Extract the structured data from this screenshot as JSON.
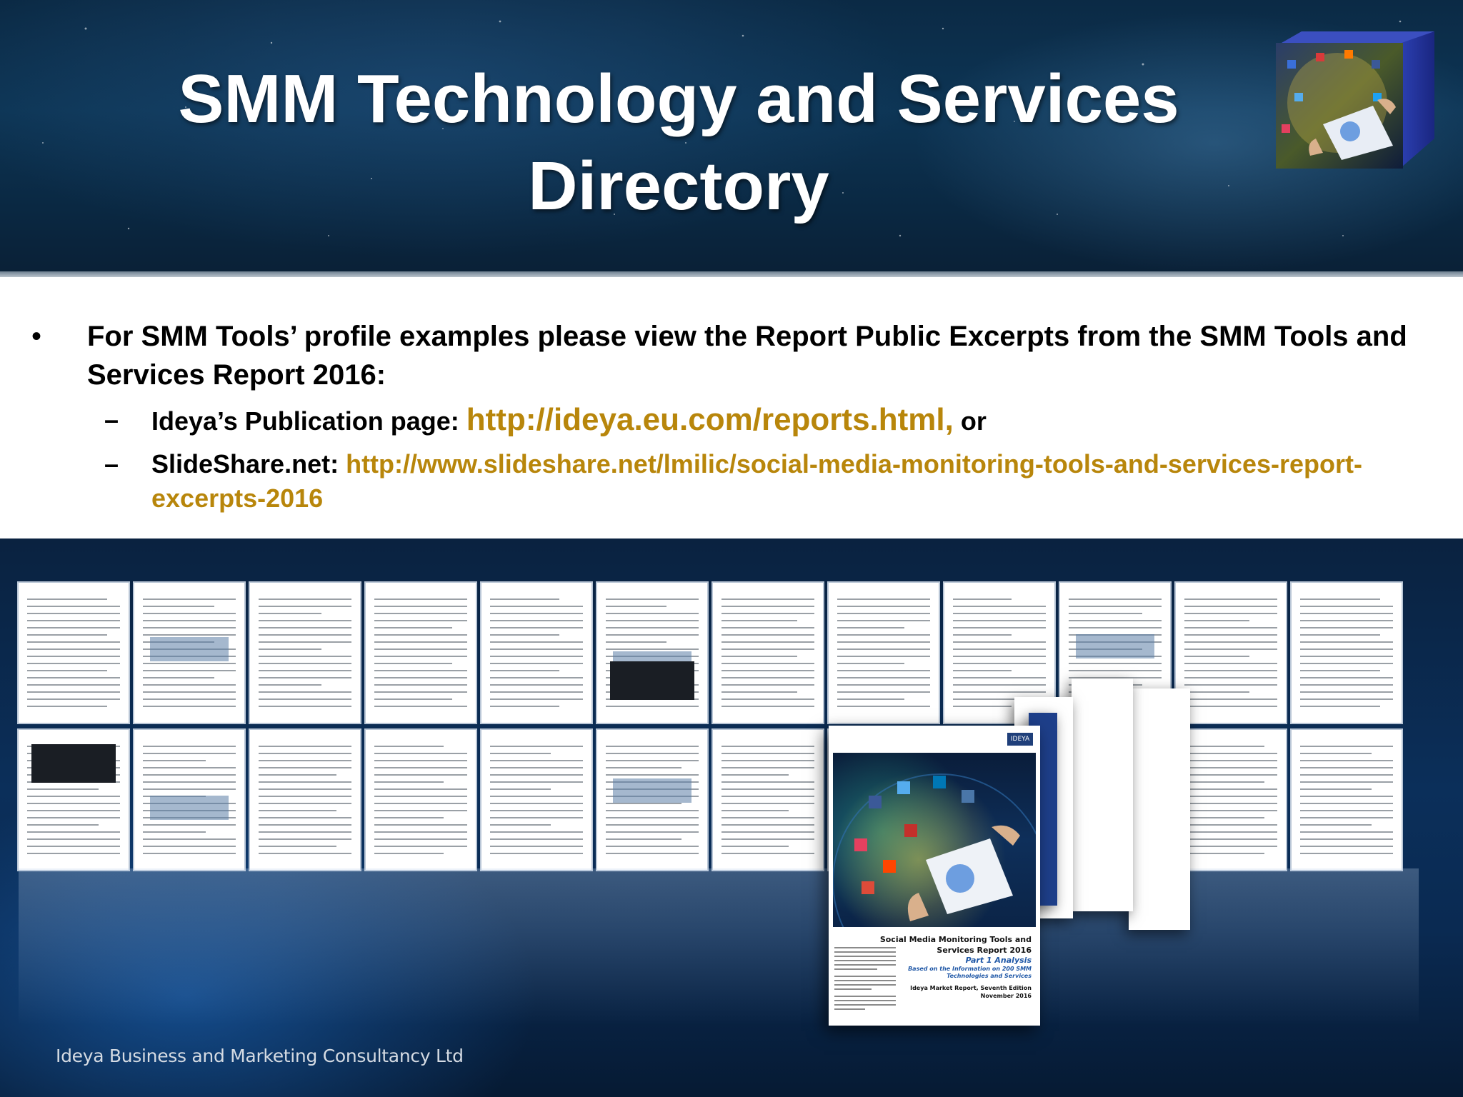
{
  "slide": {
    "title_line1": "SMM Technology and Services",
    "title_line2": "Directory"
  },
  "content": {
    "bullet_marker": "•",
    "bullet_text": "For SMM Tools’ profile examples please view the Report Public Excerpts from the SMM Tools and Services Report 2016:",
    "sub_marker": "–",
    "items": [
      {
        "label": "Ideya’s Publication page: ",
        "link": "http://ideya.eu.com/reports.html,",
        "suffix": " or"
      },
      {
        "label": "SlideShare.net: ",
        "link": "http://www.slideshare.net/lmilic/social-media-monitoring-tools-and-services-report-excerpts-2016",
        "suffix": ""
      }
    ]
  },
  "report_cover": {
    "title_line1": "Social Media Monitoring Tools and",
    "title_line2": "Services Report 2016",
    "part": "Part 1 Analysis",
    "basis_line1": "Based on the Information on 200 SMM",
    "basis_line2": "Technologies and Services",
    "edition": "Ideya Market Report, Seventh Edition",
    "date": "November 2016",
    "brand": "IDEYA"
  },
  "footer": {
    "company": "Ideya Business and Marketing Consultancy Ltd"
  },
  "colors": {
    "link": "#b8860b",
    "title": "#ffffff",
    "header_bg": "#0b2a45"
  }
}
